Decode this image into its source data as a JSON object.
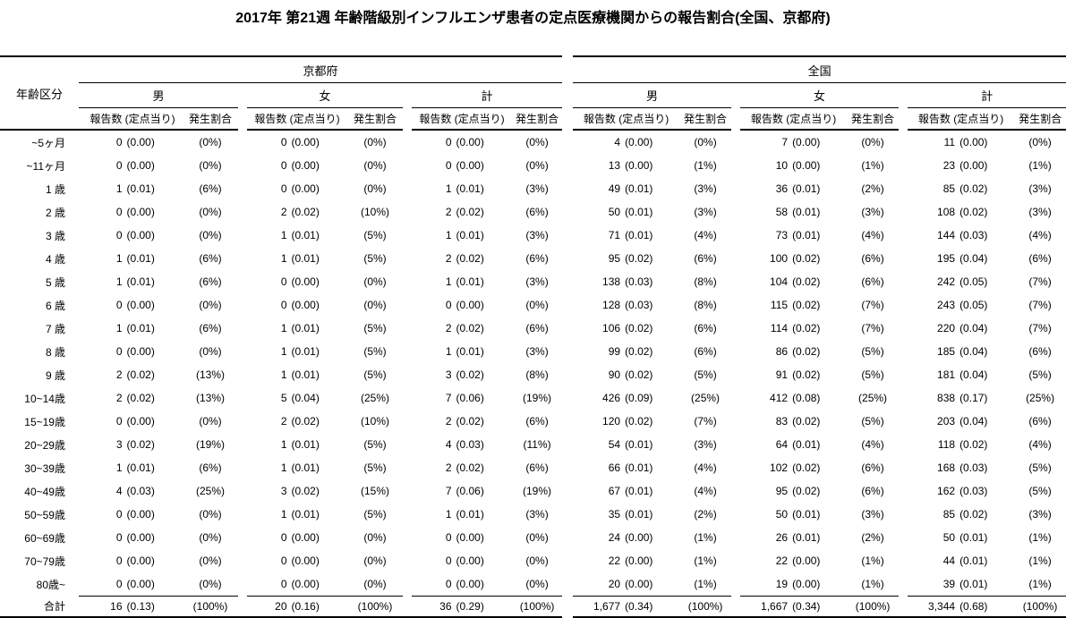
{
  "title": "2017年 第21週 年齢階級別インフルエンザ患者の定点医療機関からの報告割合(全国、京都府)",
  "table": {
    "age_header": "年齢区分",
    "region_headers": [
      "京都府",
      "全国"
    ],
    "sex_headers": [
      "男",
      "女",
      "計"
    ],
    "col_headers": {
      "count": "報告数 (定点当り)",
      "pct": "発生割合"
    },
    "rows": [
      {
        "label": "~5ヶ月",
        "groups": [
          [
            "0",
            "(0.00)",
            "(0%)"
          ],
          [
            "0",
            "(0.00)",
            "(0%)"
          ],
          [
            "0",
            "(0.00)",
            "(0%)"
          ],
          [
            "4",
            "(0.00)",
            "(0%)"
          ],
          [
            "7",
            "(0.00)",
            "(0%)"
          ],
          [
            "11",
            "(0.00)",
            "(0%)"
          ]
        ]
      },
      {
        "label": "~11ヶ月",
        "groups": [
          [
            "0",
            "(0.00)",
            "(0%)"
          ],
          [
            "0",
            "(0.00)",
            "(0%)"
          ],
          [
            "0",
            "(0.00)",
            "(0%)"
          ],
          [
            "13",
            "(0.00)",
            "(1%)"
          ],
          [
            "10",
            "(0.00)",
            "(1%)"
          ],
          [
            "23",
            "(0.00)",
            "(1%)"
          ]
        ]
      },
      {
        "label": "1 歳",
        "groups": [
          [
            "1",
            "(0.01)",
            "(6%)"
          ],
          [
            "0",
            "(0.00)",
            "(0%)"
          ],
          [
            "1",
            "(0.01)",
            "(3%)"
          ],
          [
            "49",
            "(0.01)",
            "(3%)"
          ],
          [
            "36",
            "(0.01)",
            "(2%)"
          ],
          [
            "85",
            "(0.02)",
            "(3%)"
          ]
        ]
      },
      {
        "label": "2 歳",
        "groups": [
          [
            "0",
            "(0.00)",
            "(0%)"
          ],
          [
            "2",
            "(0.02)",
            "(10%)"
          ],
          [
            "2",
            "(0.02)",
            "(6%)"
          ],
          [
            "50",
            "(0.01)",
            "(3%)"
          ],
          [
            "58",
            "(0.01)",
            "(3%)"
          ],
          [
            "108",
            "(0.02)",
            "(3%)"
          ]
        ]
      },
      {
        "label": "3 歳",
        "groups": [
          [
            "0",
            "(0.00)",
            "(0%)"
          ],
          [
            "1",
            "(0.01)",
            "(5%)"
          ],
          [
            "1",
            "(0.01)",
            "(3%)"
          ],
          [
            "71",
            "(0.01)",
            "(4%)"
          ],
          [
            "73",
            "(0.01)",
            "(4%)"
          ],
          [
            "144",
            "(0.03)",
            "(4%)"
          ]
        ]
      },
      {
        "label": "4 歳",
        "groups": [
          [
            "1",
            "(0.01)",
            "(6%)"
          ],
          [
            "1",
            "(0.01)",
            "(5%)"
          ],
          [
            "2",
            "(0.02)",
            "(6%)"
          ],
          [
            "95",
            "(0.02)",
            "(6%)"
          ],
          [
            "100",
            "(0.02)",
            "(6%)"
          ],
          [
            "195",
            "(0.04)",
            "(6%)"
          ]
        ]
      },
      {
        "label": "5 歳",
        "groups": [
          [
            "1",
            "(0.01)",
            "(6%)"
          ],
          [
            "0",
            "(0.00)",
            "(0%)"
          ],
          [
            "1",
            "(0.01)",
            "(3%)"
          ],
          [
            "138",
            "(0.03)",
            "(8%)"
          ],
          [
            "104",
            "(0.02)",
            "(6%)"
          ],
          [
            "242",
            "(0.05)",
            "(7%)"
          ]
        ]
      },
      {
        "label": "6 歳",
        "groups": [
          [
            "0",
            "(0.00)",
            "(0%)"
          ],
          [
            "0",
            "(0.00)",
            "(0%)"
          ],
          [
            "0",
            "(0.00)",
            "(0%)"
          ],
          [
            "128",
            "(0.03)",
            "(8%)"
          ],
          [
            "115",
            "(0.02)",
            "(7%)"
          ],
          [
            "243",
            "(0.05)",
            "(7%)"
          ]
        ]
      },
      {
        "label": "7 歳",
        "groups": [
          [
            "1",
            "(0.01)",
            "(6%)"
          ],
          [
            "1",
            "(0.01)",
            "(5%)"
          ],
          [
            "2",
            "(0.02)",
            "(6%)"
          ],
          [
            "106",
            "(0.02)",
            "(6%)"
          ],
          [
            "114",
            "(0.02)",
            "(7%)"
          ],
          [
            "220",
            "(0.04)",
            "(7%)"
          ]
        ]
      },
      {
        "label": "8 歳",
        "groups": [
          [
            "0",
            "(0.00)",
            "(0%)"
          ],
          [
            "1",
            "(0.01)",
            "(5%)"
          ],
          [
            "1",
            "(0.01)",
            "(3%)"
          ],
          [
            "99",
            "(0.02)",
            "(6%)"
          ],
          [
            "86",
            "(0.02)",
            "(5%)"
          ],
          [
            "185",
            "(0.04)",
            "(6%)"
          ]
        ]
      },
      {
        "label": "9 歳",
        "groups": [
          [
            "2",
            "(0.02)",
            "(13%)"
          ],
          [
            "1",
            "(0.01)",
            "(5%)"
          ],
          [
            "3",
            "(0.02)",
            "(8%)"
          ],
          [
            "90",
            "(0.02)",
            "(5%)"
          ],
          [
            "91",
            "(0.02)",
            "(5%)"
          ],
          [
            "181",
            "(0.04)",
            "(5%)"
          ]
        ]
      },
      {
        "label": "10~14歳",
        "groups": [
          [
            "2",
            "(0.02)",
            "(13%)"
          ],
          [
            "5",
            "(0.04)",
            "(25%)"
          ],
          [
            "7",
            "(0.06)",
            "(19%)"
          ],
          [
            "426",
            "(0.09)",
            "(25%)"
          ],
          [
            "412",
            "(0.08)",
            "(25%)"
          ],
          [
            "838",
            "(0.17)",
            "(25%)"
          ]
        ]
      },
      {
        "label": "15~19歳",
        "groups": [
          [
            "0",
            "(0.00)",
            "(0%)"
          ],
          [
            "2",
            "(0.02)",
            "(10%)"
          ],
          [
            "2",
            "(0.02)",
            "(6%)"
          ],
          [
            "120",
            "(0.02)",
            "(7%)"
          ],
          [
            "83",
            "(0.02)",
            "(5%)"
          ],
          [
            "203",
            "(0.04)",
            "(6%)"
          ]
        ]
      },
      {
        "label": "20~29歳",
        "groups": [
          [
            "3",
            "(0.02)",
            "(19%)"
          ],
          [
            "1",
            "(0.01)",
            "(5%)"
          ],
          [
            "4",
            "(0.03)",
            "(11%)"
          ],
          [
            "54",
            "(0.01)",
            "(3%)"
          ],
          [
            "64",
            "(0.01)",
            "(4%)"
          ],
          [
            "118",
            "(0.02)",
            "(4%)"
          ]
        ]
      },
      {
        "label": "30~39歳",
        "groups": [
          [
            "1",
            "(0.01)",
            "(6%)"
          ],
          [
            "1",
            "(0.01)",
            "(5%)"
          ],
          [
            "2",
            "(0.02)",
            "(6%)"
          ],
          [
            "66",
            "(0.01)",
            "(4%)"
          ],
          [
            "102",
            "(0.02)",
            "(6%)"
          ],
          [
            "168",
            "(0.03)",
            "(5%)"
          ]
        ]
      },
      {
        "label": "40~49歳",
        "groups": [
          [
            "4",
            "(0.03)",
            "(25%)"
          ],
          [
            "3",
            "(0.02)",
            "(15%)"
          ],
          [
            "7",
            "(0.06)",
            "(19%)"
          ],
          [
            "67",
            "(0.01)",
            "(4%)"
          ],
          [
            "95",
            "(0.02)",
            "(6%)"
          ],
          [
            "162",
            "(0.03)",
            "(5%)"
          ]
        ]
      },
      {
        "label": "50~59歳",
        "groups": [
          [
            "0",
            "(0.00)",
            "(0%)"
          ],
          [
            "1",
            "(0.01)",
            "(5%)"
          ],
          [
            "1",
            "(0.01)",
            "(3%)"
          ],
          [
            "35",
            "(0.01)",
            "(2%)"
          ],
          [
            "50",
            "(0.01)",
            "(3%)"
          ],
          [
            "85",
            "(0.02)",
            "(3%)"
          ]
        ]
      },
      {
        "label": "60~69歳",
        "groups": [
          [
            "0",
            "(0.00)",
            "(0%)"
          ],
          [
            "0",
            "(0.00)",
            "(0%)"
          ],
          [
            "0",
            "(0.00)",
            "(0%)"
          ],
          [
            "24",
            "(0.00)",
            "(1%)"
          ],
          [
            "26",
            "(0.01)",
            "(2%)"
          ],
          [
            "50",
            "(0.01)",
            "(1%)"
          ]
        ]
      },
      {
        "label": "70~79歳",
        "groups": [
          [
            "0",
            "(0.00)",
            "(0%)"
          ],
          [
            "0",
            "(0.00)",
            "(0%)"
          ],
          [
            "0",
            "(0.00)",
            "(0%)"
          ],
          [
            "22",
            "(0.00)",
            "(1%)"
          ],
          [
            "22",
            "(0.00)",
            "(1%)"
          ],
          [
            "44",
            "(0.01)",
            "(1%)"
          ]
        ]
      },
      {
        "label": "80歳~",
        "groups": [
          [
            "0",
            "(0.00)",
            "(0%)"
          ],
          [
            "0",
            "(0.00)",
            "(0%)"
          ],
          [
            "0",
            "(0.00)",
            "(0%)"
          ],
          [
            "20",
            "(0.00)",
            "(1%)"
          ],
          [
            "19",
            "(0.00)",
            "(1%)"
          ],
          [
            "39",
            "(0.01)",
            "(1%)"
          ]
        ]
      }
    ],
    "total_row": {
      "label": "合計",
      "groups": [
        [
          "16",
          "(0.13)",
          "(100%)"
        ],
        [
          "20",
          "(0.16)",
          "(100%)"
        ],
        [
          "36",
          "(0.29)",
          "(100%)"
        ],
        [
          "1,677",
          "(0.34)",
          "(100%)"
        ],
        [
          "1,667",
          "(0.34)",
          "(100%)"
        ],
        [
          "3,344",
          "(0.68)",
          "(100%)"
        ]
      ]
    }
  }
}
